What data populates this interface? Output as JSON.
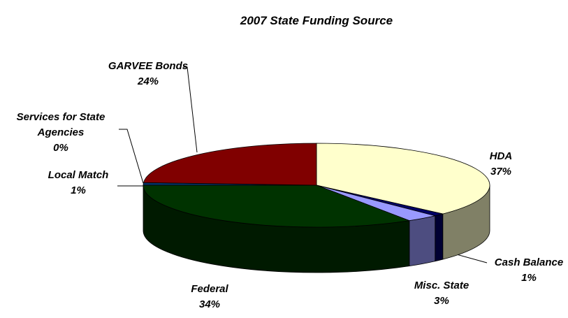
{
  "chart_data": {
    "type": "pie3d",
    "title": "2007 State Funding Source",
    "categories": [
      "HDA",
      "Cash Balance",
      "Misc. State",
      "Federal",
      "Local Match",
      "Services for State Agencies",
      "GARVEE Bonds"
    ],
    "values": [
      37,
      1,
      3,
      34,
      1,
      0,
      24
    ],
    "value_labels": [
      "37%",
      "1%",
      "3%",
      "34%",
      "1%",
      "0%",
      "24%"
    ],
    "colors": [
      "#ffffcc",
      "#000066",
      "#9999ff",
      "#003300",
      "#003366",
      "#99ccff",
      "#800000"
    ]
  }
}
